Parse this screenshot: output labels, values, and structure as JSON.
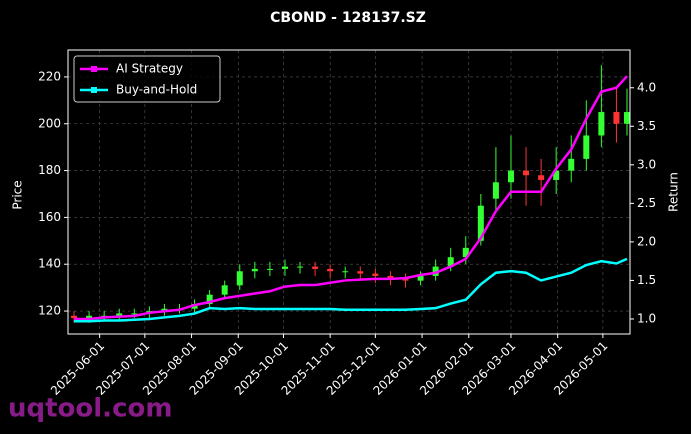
{
  "chart_data": {
    "type": "candlestick",
    "title": "CBOND - 128137.SZ",
    "ylabel": "Price",
    "y2label": "Return",
    "watermark": "uqtool.com",
    "x": [
      "2025-05-15",
      "2025-05-25",
      "2025-06-04",
      "2025-06-14",
      "2025-06-24",
      "2025-07-04",
      "2025-07-14",
      "2025-07-24",
      "2025-08-03",
      "2025-08-13",
      "2025-08-23",
      "2025-09-02",
      "2025-09-12",
      "2025-09-22",
      "2025-10-02",
      "2025-10-12",
      "2025-10-22",
      "2025-11-01",
      "2025-11-11",
      "2025-11-21",
      "2025-12-01",
      "2025-12-11",
      "2025-12-21",
      "2025-12-31",
      "2026-01-10",
      "2026-01-20",
      "2026-01-30",
      "2026-02-09",
      "2026-02-19",
      "2026-03-01",
      "2026-03-11",
      "2026-03-21",
      "2026-03-31",
      "2026-04-10",
      "2026-04-20",
      "2026-04-30",
      "2026-05-10",
      "2026-05-17"
    ],
    "open": [
      118,
      117,
      118,
      118,
      119,
      119,
      120,
      121,
      121,
      123,
      127,
      131,
      137,
      138,
      138,
      139,
      139,
      138,
      137,
      137,
      136,
      135,
      134,
      133,
      135,
      139,
      143,
      150,
      168,
      175,
      180,
      178,
      176,
      180,
      185,
      195,
      205,
      200
    ],
    "high": [
      120,
      120,
      120,
      121,
      121,
      122,
      123,
      123,
      125,
      129,
      133,
      140,
      141,
      141,
      142,
      141,
      141,
      140,
      139,
      139,
      138,
      137,
      136,
      137,
      142,
      147,
      152,
      170,
      190,
      195,
      190,
      185,
      190,
      195,
      210,
      225,
      215,
      215
    ],
    "low": [
      115,
      115,
      116,
      116,
      117,
      117,
      118,
      119,
      119,
      121,
      125,
      129,
      134,
      135,
      135,
      136,
      135,
      134,
      134,
      133,
      132,
      131,
      130,
      131,
      133,
      137,
      140,
      148,
      163,
      168,
      165,
      165,
      170,
      175,
      180,
      190,
      192,
      195
    ],
    "close": [
      117,
      118,
      118,
      119,
      119,
      120,
      121,
      121,
      123,
      127,
      131,
      137,
      138,
      138,
      139,
      139,
      138,
      137,
      137,
      136,
      135,
      134,
      133,
      135,
      139,
      143,
      147,
      165,
      175,
      180,
      178,
      176,
      180,
      185,
      195,
      205,
      200,
      205
    ],
    "up_color": "#33ff33",
    "down_color": "#ff3333",
    "series": [
      {
        "name": "AI Strategy",
        "color": "#ff00ff",
        "axis": "y2",
        "values": [
          1.0,
          1.0,
          1.02,
          1.03,
          1.04,
          1.08,
          1.1,
          1.12,
          1.18,
          1.22,
          1.27,
          1.3,
          1.33,
          1.36,
          1.42,
          1.44,
          1.44,
          1.47,
          1.5,
          1.51,
          1.52,
          1.52,
          1.53,
          1.57,
          1.6,
          1.68,
          1.78,
          2.05,
          2.4,
          2.65,
          2.65,
          2.65,
          2.95,
          3.2,
          3.6,
          3.95,
          4.0,
          4.15
        ]
      },
      {
        "name": "Buy-and-Hold",
        "color": "#00ffff",
        "axis": "y2",
        "values": [
          0.97,
          0.97,
          0.98,
          0.98,
          0.99,
          1.0,
          1.02,
          1.04,
          1.07,
          1.14,
          1.13,
          1.14,
          1.13,
          1.13,
          1.13,
          1.13,
          1.13,
          1.13,
          1.12,
          1.12,
          1.12,
          1.12,
          1.12,
          1.13,
          1.14,
          1.2,
          1.25,
          1.45,
          1.6,
          1.62,
          1.6,
          1.5,
          1.55,
          1.6,
          1.7,
          1.75,
          1.72,
          1.78
        ]
      }
    ],
    "xlim": [
      "2025-05-11",
      "2026-05-19"
    ],
    "xticks": [
      "2025-06-01",
      "2025-07-01",
      "2025-08-01",
      "2025-09-01",
      "2025-10-01",
      "2025-11-01",
      "2025-12-01",
      "2026-01-01",
      "2026-02-01",
      "2026-03-01",
      "2026-04-01",
      "2026-05-01"
    ],
    "ylim": [
      110.2,
      231.5
    ],
    "yticks": [
      120,
      140,
      160,
      180,
      200,
      220
    ],
    "y2lim": [
      0.805,
      4.49
    ],
    "y2ticks": [
      {
        "value": 1.0,
        "label": "1.0"
      },
      1.5,
      {
        "value": 2.0,
        "label": "2.0"
      },
      2.5,
      {
        "value": 3.0,
        "label": "3.0"
      },
      3.5,
      {
        "value": 4.0,
        "label": "4.0"
      }
    ],
    "grid": true,
    "legend": "upper left"
  }
}
